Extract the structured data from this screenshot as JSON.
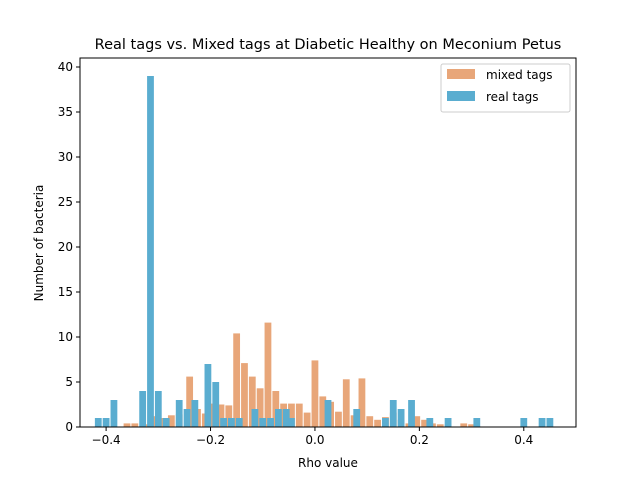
{
  "chart_data": {
    "type": "bar",
    "title": "Real tags vs. Mixed tags at Diabetic Healthy on Meconium Petus",
    "xlabel": "Rho value",
    "ylabel": "Number of bacteria",
    "xlim": [
      -0.45,
      0.5
    ],
    "ylim": [
      0,
      41
    ],
    "xticks": [
      -0.4,
      -0.2,
      0.0,
      0.2,
      0.4
    ],
    "xtick_labels": [
      "−0.4",
      "−0.2",
      "0.0",
      "0.2",
      "0.4"
    ],
    "yticks": [
      0,
      5,
      10,
      15,
      20,
      25,
      30,
      35,
      40
    ],
    "ytick_labels": [
      "0",
      "5",
      "10",
      "15",
      "20",
      "25",
      "30",
      "35",
      "40"
    ],
    "bar_width": 0.013,
    "legend_position": "upper right",
    "series": [
      {
        "name": "mixed tags",
        "color": "#E8A679",
        "x": [
          -0.36,
          -0.345,
          -0.32,
          -0.305,
          -0.29,
          -0.275,
          -0.26,
          -0.24,
          -0.225,
          -0.21,
          -0.195,
          -0.18,
          -0.165,
          -0.15,
          -0.135,
          -0.12,
          -0.105,
          -0.09,
          -0.075,
          -0.06,
          -0.045,
          -0.03,
          -0.015,
          0.0,
          0.015,
          0.03,
          0.045,
          0.06,
          0.075,
          0.09,
          0.105,
          0.12,
          0.135,
          0.15,
          0.165,
          0.18,
          0.195,
          0.21,
          0.225,
          0.24,
          0.255,
          0.285,
          0.3,
          0.31
        ],
        "values": [
          0.4,
          0.4,
          0.3,
          1.2,
          1.0,
          1.3,
          1.4,
          5.6,
          2.0,
          1.5,
          2.6,
          2.5,
          2.4,
          10.4,
          7.1,
          5.6,
          4.3,
          11.6,
          4.0,
          2.6,
          2.6,
          2.6,
          1.6,
          7.4,
          3.4,
          2.8,
          1.7,
          5.3,
          1.3,
          5.4,
          1.2,
          0.8,
          1.1,
          1.6,
          0.8,
          0.4,
          1.2,
          0.8,
          0.4,
          0.3,
          0.3,
          0.4,
          0.3,
          0.1
        ]
      },
      {
        "name": "real tags",
        "color": "#5AADD0",
        "x": [
          -0.415,
          -0.4,
          -0.385,
          -0.33,
          -0.315,
          -0.3,
          -0.285,
          -0.26,
          -0.245,
          -0.23,
          -0.205,
          -0.19,
          -0.175,
          -0.16,
          -0.145,
          -0.115,
          -0.1,
          -0.085,
          -0.07,
          -0.055,
          -0.045,
          0.025,
          0.08,
          0.135,
          0.15,
          0.165,
          0.185,
          0.22,
          0.255,
          0.31,
          0.4,
          0.435,
          0.45
        ],
        "values": [
          1,
          1,
          3,
          4,
          39,
          4,
          1,
          3,
          2,
          3,
          7,
          5,
          1,
          1,
          1,
          2,
          1,
          1,
          2,
          2,
          1,
          3,
          2,
          1,
          3,
          2,
          3,
          1,
          1,
          1,
          1,
          1,
          1
        ]
      }
    ]
  }
}
